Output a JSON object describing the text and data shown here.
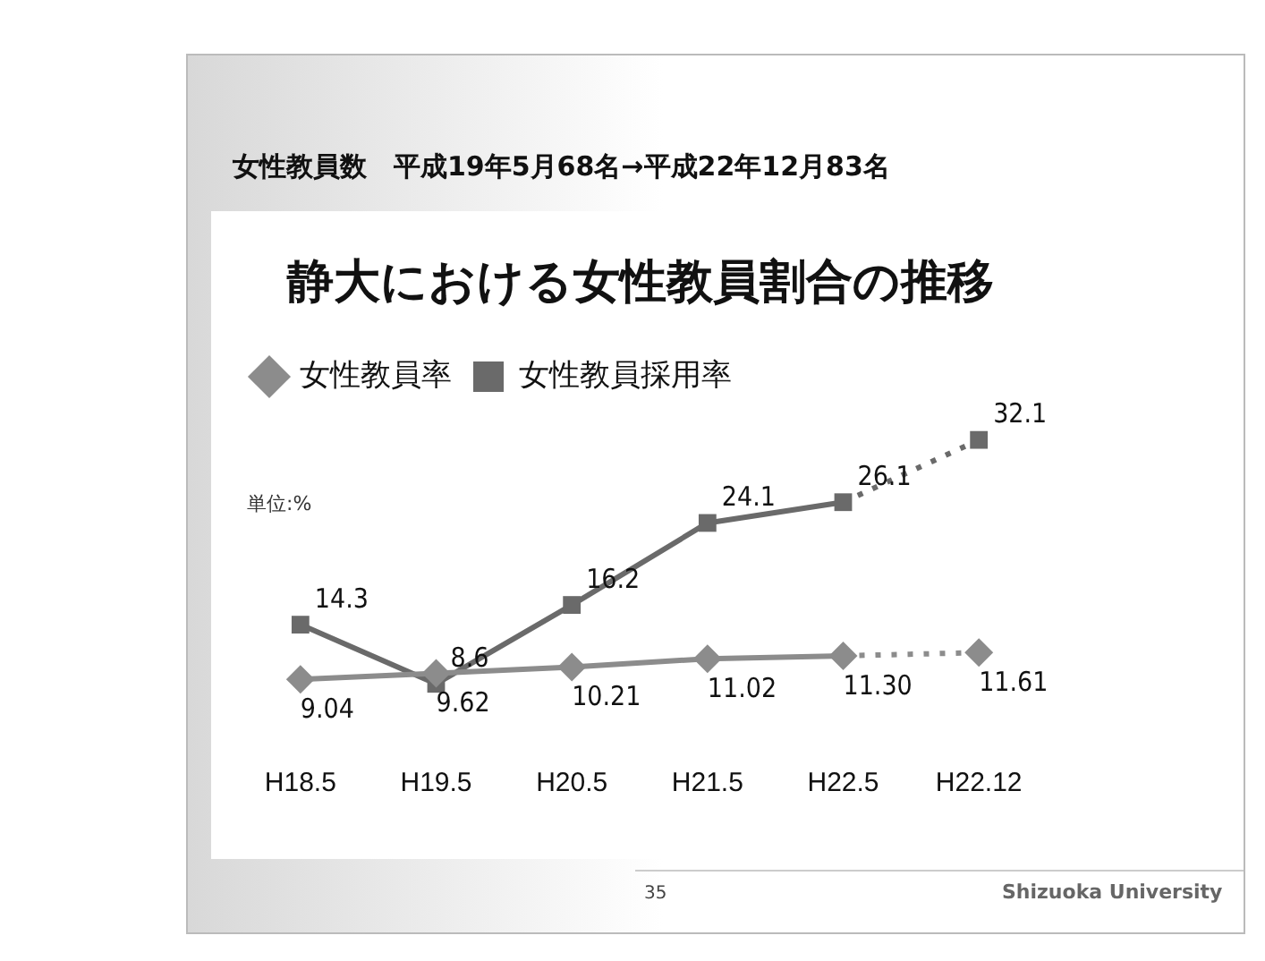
{
  "chart_data": {
    "type": "line",
    "title": "静大における女性教員割合の推移",
    "subtitle": "女性教員数　平成19年5月68名→平成22年12月83名",
    "categories": [
      "H18.5",
      "H19.5",
      "H20.5",
      "H21.5",
      "H22.5",
      "H22.12"
    ],
    "series": [
      {
        "name": "女性教員率",
        "color": "#8c8c8c",
        "marker": "diamond",
        "line_style": "solid",
        "values": [
          9.04,
          9.62,
          10.21,
          11.02,
          11.3,
          null
        ],
        "value_labels": [
          "9.04",
          "9.62",
          "10.21",
          "11.02",
          "11.30",
          null
        ]
      },
      {
        "name": "女性教員採用率",
        "color": "#6a6a6a",
        "marker": "square",
        "line_style": "solid",
        "values": [
          14.3,
          8.6,
          16.2,
          24.1,
          26.1,
          null
        ]
      },
      {
        "color": "#8c8c8c",
        "marker": "diamond",
        "line_style": "dotted",
        "values": [
          null,
          null,
          null,
          null,
          11.3,
          11.61
        ],
        "value_labels": [
          null,
          null,
          null,
          null,
          null,
          "11.61"
        ]
      },
      {
        "color": "#6a6a6a",
        "marker": "square",
        "line_style": "dotted",
        "values": [
          null,
          null,
          null,
          null,
          26.1,
          32.1
        ],
        "value_labels": [
          null,
          null,
          null,
          null,
          null,
          "32.1"
        ]
      }
    ],
    "data_labels": true,
    "legend": "top left",
    "grid": false,
    "annotations": [
      "単位:%",
      "35",
      "Shizuoka University"
    ]
  }
}
